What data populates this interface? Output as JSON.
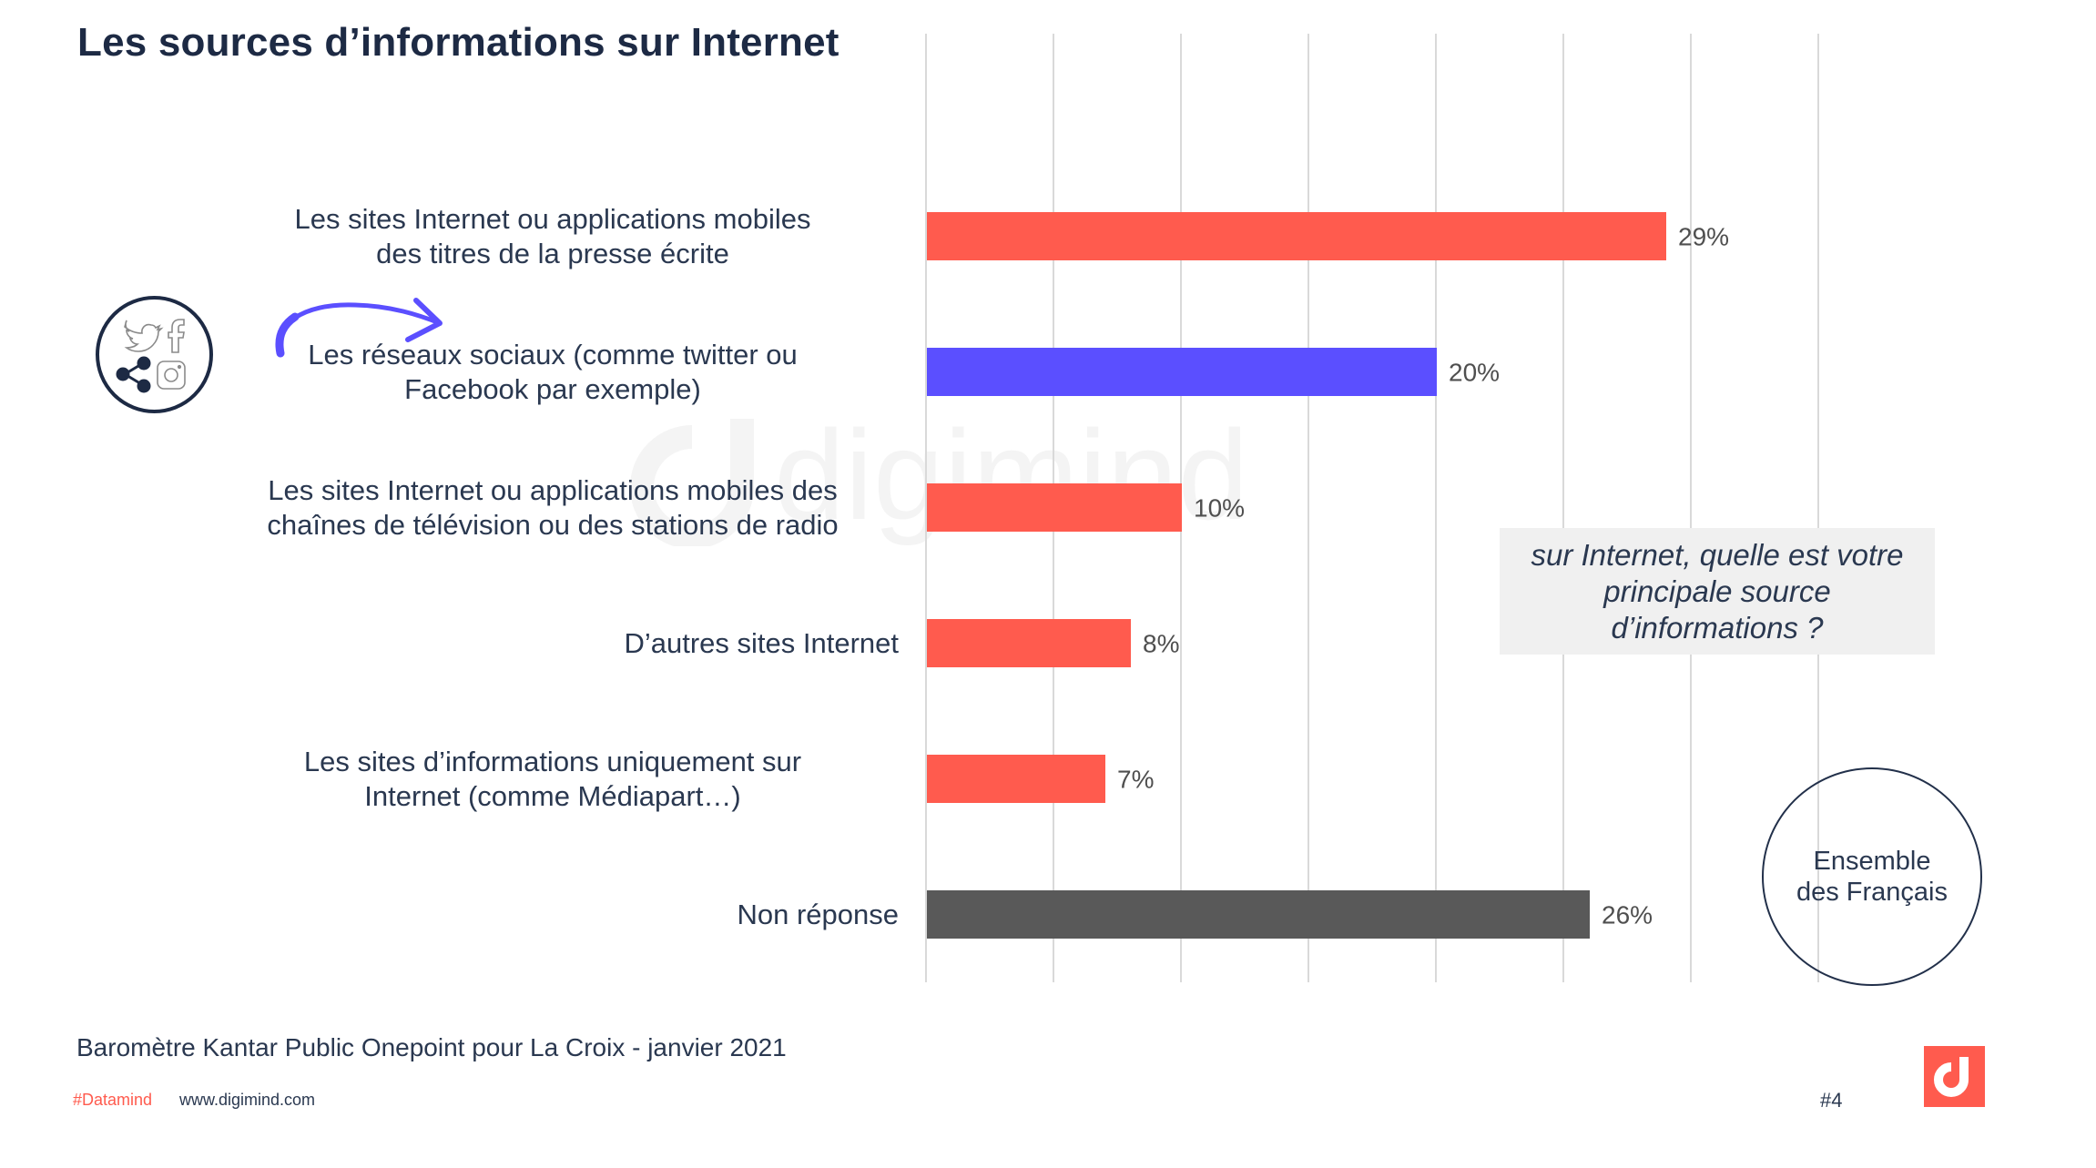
{
  "title": "Les sources d’informations sur Internet",
  "question": "sur Internet, quelle est votre principale source d’informations ?",
  "population_badge": "Ensemble des Français",
  "source": "Baromètre Kantar Public Onepoint pour La Croix   - janvier 2021",
  "footer": {
    "hashtag": "#Datamind",
    "website": "www.digimind.com",
    "page_number": "#4"
  },
  "watermark": "digimind",
  "icons": {
    "social_badge": [
      "twitter-icon",
      "facebook-icon",
      "share-icon",
      "instagram-icon"
    ],
    "arrow": "curved-arrow-icon",
    "logo": "digimind-logo-icon"
  },
  "colors": {
    "primary": "#FF5B4E",
    "highlight": "#5B4FFF",
    "no_answer": "#595959",
    "gridline": "#D9D9D9",
    "text_dark": "#1D2A44"
  },
  "chart_data": {
    "type": "bar",
    "orientation": "horizontal",
    "title": "Les sources d’informations sur Internet",
    "categories": [
      "Les sites Internet ou applications mobiles des titres de la presse écrite",
      "Les réseaux sociaux (comme twitter ou Facebook par exemple)",
      "Les sites Internet ou applications mobiles des chaînes de télévision ou des stations de radio",
      "D’autres sites Internet",
      "Les sites d’informations uniquement sur Internet (comme Médiapart…)",
      "Non réponse"
    ],
    "category_lines": [
      [
        "Les sites Internet ou applications mobiles",
        "des titres de la presse écrite"
      ],
      [
        "Les réseaux sociaux (comme twitter ou",
        "Facebook par exemple)"
      ],
      [
        "Les sites Internet ou applications mobiles des",
        "chaînes de télévision ou des stations de radio"
      ],
      [
        "D’autres sites Internet"
      ],
      [
        "Les sites d’informations uniquement sur",
        "Internet (comme Médiapart…)"
      ],
      [
        "Non réponse"
      ]
    ],
    "values": [
      29,
      20,
      10,
      8,
      7,
      26
    ],
    "value_labels": [
      "29%",
      "20%",
      "10%",
      "8%",
      "7%",
      "26%"
    ],
    "bar_colors": [
      "#FF5B4E",
      "#5B4FFF",
      "#FF5B4E",
      "#FF5B4E",
      "#FF5B4E",
      "#595959"
    ],
    "unit": "%",
    "xlim": [
      0,
      35
    ],
    "grid_step": 5,
    "grid": true,
    "xlabel": "",
    "ylabel": "",
    "legend": "none"
  }
}
